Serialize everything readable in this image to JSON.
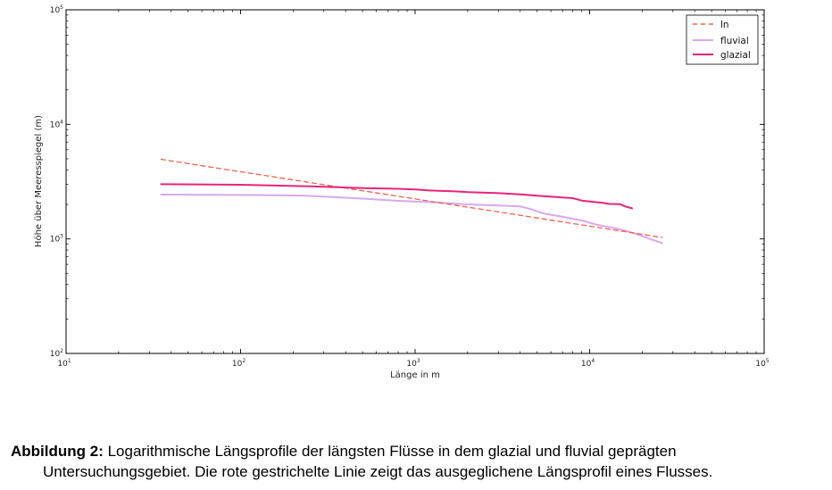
{
  "chart_data": {
    "type": "line",
    "xlabel": "Länge in m",
    "ylabel": "Höhe über Meeresspiegel (m)",
    "xscale": "log",
    "yscale": "log",
    "xlim": [
      10,
      100000
    ],
    "ylim": [
      100,
      100000
    ],
    "grid": false,
    "legend_position": "top-right",
    "x_ticks": [
      {
        "base": "10",
        "exp": "1",
        "value": 10
      },
      {
        "base": "10",
        "exp": "2",
        "value": 100
      },
      {
        "base": "10",
        "exp": "3",
        "value": 1000
      },
      {
        "base": "10",
        "exp": "4",
        "value": 10000
      },
      {
        "base": "10",
        "exp": "5",
        "value": 100000
      }
    ],
    "y_ticks": [
      {
        "base": "10",
        "exp": "2",
        "value": 100
      },
      {
        "base": "10",
        "exp": "3",
        "value": 1000
      },
      {
        "base": "10",
        "exp": "4",
        "value": 10000
      },
      {
        "base": "10",
        "exp": "5",
        "value": 100000
      }
    ],
    "series": [
      {
        "name": "ln",
        "color": "#f2604a",
        "style": "dashed",
        "x": [
          35,
          26000
        ],
        "y": [
          4950,
          1030
        ]
      },
      {
        "name": "fluvial",
        "color": "#d9a8ec",
        "style": "solid",
        "x": [
          35,
          100,
          230,
          500,
          800,
          1300,
          2000,
          3000,
          4000,
          4600,
          5500,
          7000,
          9000,
          11000,
          14000,
          16000,
          18000,
          20000,
          23000,
          26000
        ],
        "y": [
          2440,
          2420,
          2390,
          2250,
          2150,
          2080,
          2000,
          1960,
          1920,
          1820,
          1660,
          1560,
          1450,
          1330,
          1240,
          1180,
          1120,
          1060,
          980,
          920
        ]
      },
      {
        "name": "glazial",
        "color": "#e8247a",
        "style": "solid",
        "x": [
          35,
          100,
          250,
          500,
          800,
          1000,
          1200,
          1700,
          2000,
          3000,
          4000,
          5000,
          7000,
          8000,
          9000,
          10000,
          12000,
          13000,
          15000,
          16000,
          17500
        ],
        "y": [
          3000,
          2970,
          2880,
          2780,
          2740,
          2700,
          2650,
          2600,
          2560,
          2510,
          2450,
          2380,
          2300,
          2270,
          2160,
          2120,
          2060,
          2020,
          2010,
          1920,
          1850
        ]
      }
    ]
  },
  "caption": {
    "bold": "Abbildung 2:",
    "line1": " Logarithmische Längsprofile der längsten Flüsse in dem glazial und fluvial geprägten",
    "line2": "Untersuchungsgebiet. Die rote gestrichelte Linie zeigt das ausgeglichene Längsprofil eines Flusses."
  }
}
